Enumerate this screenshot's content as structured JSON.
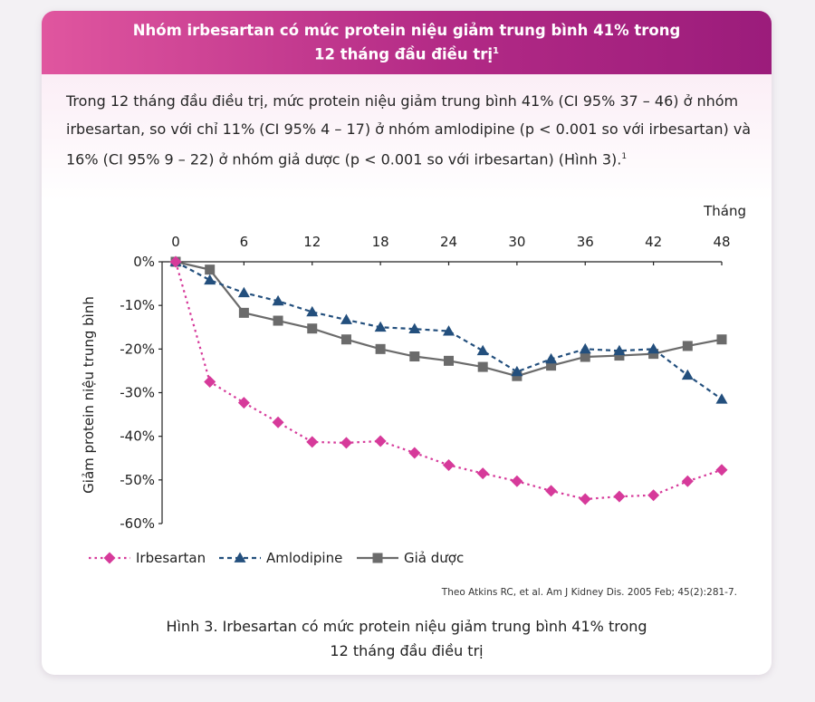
{
  "header": {
    "line1": "Nhóm irbesartan có mức protein niệu giảm trung bình 41% trong",
    "line2": "12 tháng đầu điều trị",
    "sup": "1"
  },
  "intro": {
    "text": "Trong 12 tháng đầu điều trị, mức protein niệu giảm trung bình 41% (CI 95% 37 – 46) ở nhóm irbesartan, so với chỉ 11% (CI 95% 4 – 17) ở nhóm amlodipine (p < 0.001 so với irbesartan) và 16% (CI 95% 9 – 22) ở nhóm giả dược (p < 0.001 so với irbesartan) (Hình 3).",
    "sup": "1"
  },
  "chart_data": {
    "type": "line",
    "xlabel": "Tháng",
    "ylabel": "Giảm protein niệu trung bình",
    "x_ticks": [
      "0",
      "6",
      "12",
      "18",
      "24",
      "30",
      "36",
      "42",
      "48"
    ],
    "y_ticks": [
      "0%",
      "-10%",
      "-20%",
      "-30%",
      "-40%",
      "-50%",
      "-60%"
    ],
    "xlim": [
      0,
      48
    ],
    "ylim": [
      -60,
      0
    ],
    "grid": false,
    "legend_position": "bottom-left",
    "series": [
      {
        "name": "Irbesartan",
        "color": "#d63a9a",
        "marker": "diamond",
        "line": "dotted",
        "x": [
          0,
          3,
          6,
          9,
          12,
          15,
          18,
          21,
          24,
          27,
          30,
          33,
          36,
          39,
          42,
          45,
          48
        ],
        "y": [
          0,
          -27.5,
          -32.3,
          -36.8,
          -41.3,
          -41.5,
          -41.1,
          -43.8,
          -46.6,
          -48.5,
          -50.3,
          -52.5,
          -54.4,
          -53.8,
          -53.5,
          -50.3,
          -47.7
        ]
      },
      {
        "name": "Amlodipine",
        "color": "#234f7d",
        "marker": "triangle",
        "line": "dashed",
        "x": [
          0,
          3,
          6,
          9,
          12,
          15,
          18,
          21,
          24,
          27,
          30,
          33,
          36,
          39,
          42,
          45,
          48
        ],
        "y": [
          0,
          -4.2,
          -7.1,
          -9.0,
          -11.5,
          -13.3,
          -15.0,
          -15.4,
          -15.9,
          -20.4,
          -25.2,
          -22.3,
          -20.0,
          -20.4,
          -20.0,
          -26.0,
          -31.5
        ]
      },
      {
        "name": "Giả dược",
        "color": "#6b6b6b",
        "marker": "square",
        "line": "solid",
        "x": [
          0,
          3,
          6,
          9,
          12,
          15,
          18,
          21,
          24,
          27,
          30,
          33,
          36,
          39,
          42,
          45,
          48
        ],
        "y": [
          0,
          -1.8,
          -11.7,
          -13.5,
          -15.3,
          -17.8,
          -20.0,
          -21.7,
          -22.7,
          -24.1,
          -26.2,
          -23.8,
          -21.8,
          -21.5,
          -21.1,
          -19.3,
          -17.8
        ]
      }
    ]
  },
  "citation": "Theo Atkins RC, et al. Am J Kidney Dis. 2005 Feb; 45(2):281-7.",
  "caption": {
    "line1": "Hình 3. Irbesartan có mức protein niệu giảm trung bình 41% trong",
    "line2": "12 tháng đầu điều trị"
  }
}
